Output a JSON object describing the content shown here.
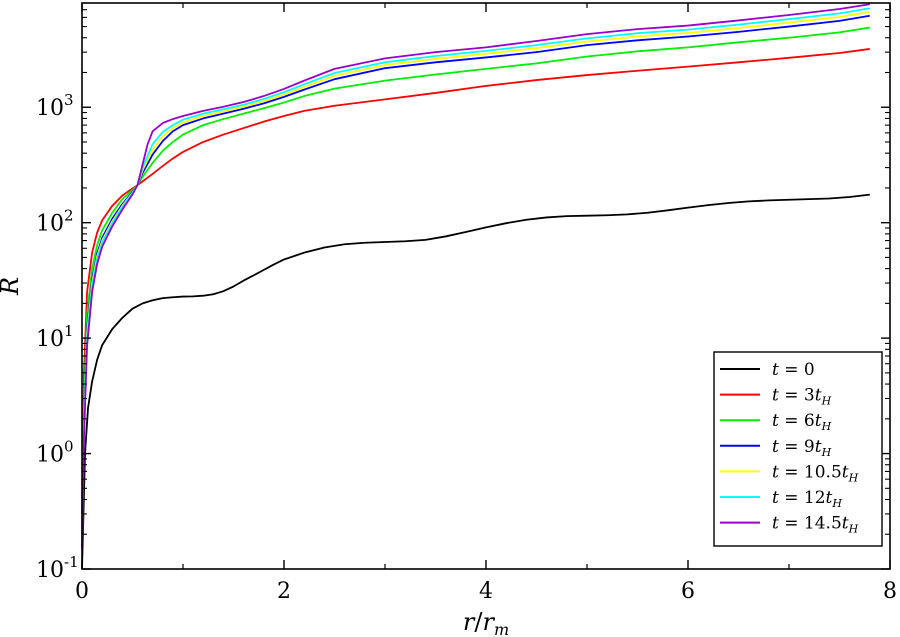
{
  "chart_data": {
    "type": "line",
    "title": "",
    "xlabel": "r/r_m",
    "ylabel": "R",
    "xlim": [
      0,
      8
    ],
    "ylim": [
      0.1,
      8000
    ],
    "yscale": "log",
    "grid": false,
    "legend_position": "bottom-right",
    "x_ticks": [
      {
        "value": 0,
        "label": "0"
      },
      {
        "value": 2,
        "label": "2"
      },
      {
        "value": 4,
        "label": "4"
      },
      {
        "value": 6,
        "label": "6"
      },
      {
        "value": 8,
        "label": "8"
      }
    ],
    "y_ticks": [
      {
        "value": 0.1,
        "base": "10",
        "exp": "-1"
      },
      {
        "value": 1,
        "base": "10",
        "exp": "0"
      },
      {
        "value": 10,
        "base": "10",
        "exp": "1"
      },
      {
        "value": 100,
        "base": "10",
        "exp": "2"
      },
      {
        "value": 1000,
        "base": "10",
        "exp": "3"
      }
    ],
    "series": [
      {
        "name": "t = 0",
        "color": "#000000",
        "points": [
          [
            0.0,
            0.1
          ],
          [
            0.03,
            1
          ],
          [
            0.06,
            2.5
          ],
          [
            0.1,
            4.2
          ],
          [
            0.15,
            6.5
          ],
          [
            0.2,
            8.7
          ],
          [
            0.3,
            12
          ],
          [
            0.4,
            15
          ],
          [
            0.5,
            18
          ],
          [
            0.6,
            20
          ],
          [
            0.7,
            21.3
          ],
          [
            0.8,
            22.2
          ],
          [
            0.9,
            22.6
          ],
          [
            1.0,
            22.9
          ],
          [
            1.1,
            23
          ],
          [
            1.2,
            23.3
          ],
          [
            1.3,
            24
          ],
          [
            1.4,
            25.5
          ],
          [
            1.5,
            28
          ],
          [
            1.6,
            31.5
          ],
          [
            1.7,
            35
          ],
          [
            1.8,
            39
          ],
          [
            1.9,
            43.5
          ],
          [
            2.0,
            48
          ],
          [
            2.2,
            55
          ],
          [
            2.4,
            61
          ],
          [
            2.6,
            65
          ],
          [
            2.8,
            67
          ],
          [
            3.0,
            68
          ],
          [
            3.2,
            69
          ],
          [
            3.4,
            71
          ],
          [
            3.6,
            76
          ],
          [
            3.8,
            83
          ],
          [
            4.0,
            91
          ],
          [
            4.2,
            99
          ],
          [
            4.4,
            106
          ],
          [
            4.6,
            111
          ],
          [
            4.8,
            114
          ],
          [
            5.0,
            115
          ],
          [
            5.2,
            116
          ],
          [
            5.4,
            118
          ],
          [
            5.6,
            122
          ],
          [
            5.8,
            128
          ],
          [
            6.0,
            135
          ],
          [
            6.2,
            142
          ],
          [
            6.4,
            148
          ],
          [
            6.6,
            153
          ],
          [
            6.8,
            156
          ],
          [
            7.0,
            158
          ],
          [
            7.2,
            160
          ],
          [
            7.4,
            162
          ],
          [
            7.6,
            167
          ],
          [
            7.8,
            175
          ]
        ]
      },
      {
        "name": "t = 3t_H",
        "color": "#ff0000",
        "points": [
          [
            0.0,
            0.3
          ],
          [
            0.02,
            5
          ],
          [
            0.05,
            25
          ],
          [
            0.1,
            55
          ],
          [
            0.15,
            82
          ],
          [
            0.2,
            105
          ],
          [
            0.3,
            140
          ],
          [
            0.4,
            172
          ],
          [
            0.5,
            198
          ],
          [
            0.55,
            212
          ],
          [
            0.6,
            228
          ],
          [
            0.7,
            265
          ],
          [
            0.8,
            310
          ],
          [
            0.9,
            360
          ],
          [
            1.0,
            410
          ],
          [
            1.2,
            500
          ],
          [
            1.4,
            580
          ],
          [
            1.6,
            660
          ],
          [
            1.8,
            750
          ],
          [
            2.0,
            840
          ],
          [
            2.2,
            930
          ],
          [
            2.5,
            1030
          ],
          [
            3.0,
            1170
          ],
          [
            3.5,
            1330
          ],
          [
            4.0,
            1530
          ],
          [
            4.5,
            1720
          ],
          [
            5.0,
            1900
          ],
          [
            5.5,
            2070
          ],
          [
            6.0,
            2250
          ],
          [
            6.5,
            2450
          ],
          [
            7.0,
            2680
          ],
          [
            7.5,
            2950
          ],
          [
            7.8,
            3200
          ]
        ]
      },
      {
        "name": "t = 6t_H",
        "color": "#00ee00",
        "points": [
          [
            0.0,
            0.3
          ],
          [
            0.02,
            3
          ],
          [
            0.05,
            16
          ],
          [
            0.1,
            40
          ],
          [
            0.15,
            64
          ],
          [
            0.2,
            86
          ],
          [
            0.3,
            122
          ],
          [
            0.4,
            160
          ],
          [
            0.5,
            192
          ],
          [
            0.55,
            212
          ],
          [
            0.6,
            250
          ],
          [
            0.7,
            330
          ],
          [
            0.8,
            420
          ],
          [
            0.9,
            500
          ],
          [
            1.0,
            580
          ],
          [
            1.2,
            700
          ],
          [
            1.4,
            790
          ],
          [
            1.6,
            880
          ],
          [
            1.8,
            980
          ],
          [
            2.0,
            1100
          ],
          [
            2.2,
            1250
          ],
          [
            2.5,
            1450
          ],
          [
            3.0,
            1700
          ],
          [
            3.5,
            1920
          ],
          [
            4.0,
            2150
          ],
          [
            4.5,
            2400
          ],
          [
            5.0,
            2750
          ],
          [
            5.5,
            3050
          ],
          [
            6.0,
            3300
          ],
          [
            6.5,
            3650
          ],
          [
            7.0,
            4000
          ],
          [
            7.5,
            4450
          ],
          [
            7.8,
            4900
          ]
        ]
      },
      {
        "name": "t = 9t_H",
        "color": "#0000ff",
        "points": [
          [
            0.0,
            0.2
          ],
          [
            0.02,
            2
          ],
          [
            0.05,
            12
          ],
          [
            0.1,
            32
          ],
          [
            0.15,
            54
          ],
          [
            0.2,
            74
          ],
          [
            0.3,
            108
          ],
          [
            0.4,
            145
          ],
          [
            0.5,
            185
          ],
          [
            0.55,
            212
          ],
          [
            0.6,
            270
          ],
          [
            0.7,
            390
          ],
          [
            0.8,
            510
          ],
          [
            0.9,
            620
          ],
          [
            1.0,
            700
          ],
          [
            1.2,
            800
          ],
          [
            1.4,
            880
          ],
          [
            1.6,
            970
          ],
          [
            1.8,
            1080
          ],
          [
            2.0,
            1230
          ],
          [
            2.2,
            1420
          ],
          [
            2.5,
            1750
          ],
          [
            3.0,
            2180
          ],
          [
            3.5,
            2450
          ],
          [
            4.0,
            2700
          ],
          [
            4.5,
            3000
          ],
          [
            5.0,
            3450
          ],
          [
            5.5,
            3800
          ],
          [
            6.0,
            4100
          ],
          [
            6.5,
            4500
          ],
          [
            7.0,
            5000
          ],
          [
            7.5,
            5600
          ],
          [
            7.8,
            6200
          ]
        ]
      },
      {
        "name": "t = 10.5t_H",
        "color": "#ffff00",
        "points": [
          [
            0.0,
            0.2
          ],
          [
            0.02,
            1.8
          ],
          [
            0.05,
            11
          ],
          [
            0.1,
            30
          ],
          [
            0.15,
            51
          ],
          [
            0.2,
            70
          ],
          [
            0.3,
            103
          ],
          [
            0.4,
            140
          ],
          [
            0.5,
            182
          ],
          [
            0.55,
            212
          ],
          [
            0.6,
            285
          ],
          [
            0.7,
            430
          ],
          [
            0.8,
            560
          ],
          [
            0.9,
            660
          ],
          [
            1.0,
            740
          ],
          [
            1.2,
            840
          ],
          [
            1.4,
            920
          ],
          [
            1.6,
            1010
          ],
          [
            1.8,
            1130
          ],
          [
            2.0,
            1290
          ],
          [
            2.2,
            1500
          ],
          [
            2.5,
            1870
          ],
          [
            3.0,
            2320
          ],
          [
            3.5,
            2620
          ],
          [
            4.0,
            2900
          ],
          [
            4.5,
            3250
          ],
          [
            5.0,
            3700
          ],
          [
            5.5,
            4100
          ],
          [
            6.0,
            4400
          ],
          [
            6.5,
            4850
          ],
          [
            7.0,
            5400
          ],
          [
            7.5,
            6050
          ],
          [
            7.8,
            6700
          ]
        ]
      },
      {
        "name": "t = 12t_H",
        "color": "#00ffff",
        "points": [
          [
            0.0,
            0.2
          ],
          [
            0.02,
            1.6
          ],
          [
            0.05,
            10
          ],
          [
            0.1,
            28
          ],
          [
            0.15,
            48
          ],
          [
            0.2,
            67
          ],
          [
            0.3,
            99
          ],
          [
            0.4,
            136
          ],
          [
            0.5,
            180
          ],
          [
            0.55,
            212
          ],
          [
            0.6,
            300
          ],
          [
            0.7,
            480
          ],
          [
            0.8,
            610
          ],
          [
            0.9,
            700
          ],
          [
            1.0,
            780
          ],
          [
            1.2,
            880
          ],
          [
            1.4,
            960
          ],
          [
            1.6,
            1050
          ],
          [
            1.8,
            1180
          ],
          [
            2.0,
            1350
          ],
          [
            2.2,
            1580
          ],
          [
            2.5,
            1980
          ],
          [
            3.0,
            2450
          ],
          [
            3.5,
            2780
          ],
          [
            4.0,
            3080
          ],
          [
            4.5,
            3450
          ],
          [
            5.0,
            3950
          ],
          [
            5.5,
            4380
          ],
          [
            6.0,
            4700
          ],
          [
            6.5,
            5200
          ],
          [
            7.0,
            5800
          ],
          [
            7.5,
            6500
          ],
          [
            7.8,
            7200
          ]
        ]
      },
      {
        "name": "t = 14.5t_H",
        "color": "#9900cc",
        "points": [
          [
            0.0,
            0.15
          ],
          [
            0.02,
            1.4
          ],
          [
            0.05,
            8.5
          ],
          [
            0.1,
            25
          ],
          [
            0.15,
            44
          ],
          [
            0.2,
            62
          ],
          [
            0.3,
            93
          ],
          [
            0.4,
            130
          ],
          [
            0.5,
            176
          ],
          [
            0.55,
            212
          ],
          [
            0.6,
            320
          ],
          [
            0.65,
            480
          ],
          [
            0.7,
            620
          ],
          [
            0.8,
            730
          ],
          [
            0.9,
            790
          ],
          [
            1.0,
            840
          ],
          [
            1.2,
            930
          ],
          [
            1.4,
            1010
          ],
          [
            1.6,
            1110
          ],
          [
            1.8,
            1250
          ],
          [
            2.0,
            1440
          ],
          [
            2.2,
            1700
          ],
          [
            2.5,
            2150
          ],
          [
            3.0,
            2650
          ],
          [
            3.5,
            3000
          ],
          [
            4.0,
            3300
          ],
          [
            4.5,
            3750
          ],
          [
            5.0,
            4300
          ],
          [
            5.5,
            4750
          ],
          [
            6.0,
            5100
          ],
          [
            6.5,
            5650
          ],
          [
            7.0,
            6300
          ],
          [
            7.5,
            7100
          ],
          [
            7.8,
            7800
          ]
        ]
      }
    ],
    "legend": [
      {
        "lhs": "t",
        "eq": " = ",
        "num": "0",
        "sub": ""
      },
      {
        "lhs": "t",
        "eq": " = ",
        "num": "3",
        "sub": "H"
      },
      {
        "lhs": "t",
        "eq": " = ",
        "num": "6",
        "sub": "H"
      },
      {
        "lhs": "t",
        "eq": " = ",
        "num": "9",
        "sub": "H"
      },
      {
        "lhs": "t",
        "eq": " = ",
        "num": "10.5",
        "sub": "H"
      },
      {
        "lhs": "t",
        "eq": " = ",
        "num": "12",
        "sub": "H"
      },
      {
        "lhs": "t",
        "eq": " = ",
        "num": "14.5",
        "sub": "H"
      }
    ]
  }
}
